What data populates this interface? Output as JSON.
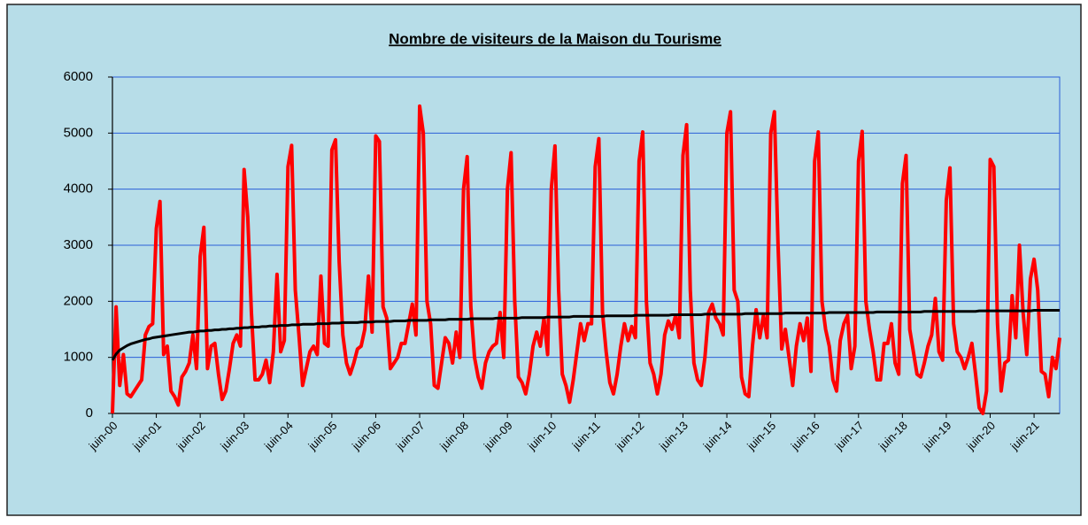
{
  "chart_data": {
    "type": "line",
    "title": "Nombre de visiteurs de la Maison du Tourisme",
    "categories": [
      "juin-00",
      null,
      null,
      null,
      null,
      null,
      null,
      null,
      null,
      null,
      null,
      null,
      "juin-01",
      null,
      null,
      null,
      null,
      null,
      null,
      null,
      null,
      null,
      null,
      null,
      "juin-02",
      null,
      null,
      null,
      null,
      null,
      null,
      null,
      null,
      null,
      null,
      null,
      "juin-03",
      null,
      null,
      null,
      null,
      null,
      null,
      null,
      null,
      null,
      null,
      null,
      "juin-04",
      null,
      null,
      null,
      null,
      null,
      null,
      null,
      null,
      null,
      null,
      null,
      "juin-05",
      null,
      null,
      null,
      null,
      null,
      null,
      null,
      null,
      null,
      null,
      null,
      "juin-06",
      null,
      null,
      null,
      null,
      null,
      null,
      null,
      null,
      null,
      null,
      null,
      "juin-07",
      null,
      null,
      null,
      null,
      null,
      null,
      null,
      null,
      null,
      null,
      null,
      "juin-08",
      null,
      null,
      null,
      null,
      null,
      null,
      null,
      null,
      null,
      null,
      null,
      "juin-09",
      null,
      null,
      null,
      null,
      null,
      null,
      null,
      null,
      null,
      null,
      null,
      "juin-10",
      null,
      null,
      null,
      null,
      null,
      null,
      null,
      null,
      null,
      null,
      null,
      "juin-11",
      null,
      null,
      null,
      null,
      null,
      null,
      null,
      null,
      null,
      null,
      null,
      "juin-12",
      null,
      null,
      null,
      null,
      null,
      null,
      null,
      null,
      null,
      null,
      null,
      "juin-13",
      null,
      null,
      null,
      null,
      null,
      null,
      null,
      null,
      null,
      null,
      null,
      "juin-14",
      null,
      null,
      null,
      null,
      null,
      null,
      null,
      null,
      null,
      null,
      null,
      "juin-15",
      null,
      null,
      null,
      null,
      null,
      null,
      null,
      null,
      null,
      null,
      null,
      "juin-16",
      null,
      null,
      null,
      null,
      null,
      null,
      null,
      null,
      null,
      null,
      null,
      "juin-17",
      null,
      null,
      null,
      null,
      null,
      null,
      null,
      null,
      null,
      null,
      null,
      "juin-18",
      null,
      null,
      null,
      null,
      null,
      null,
      null,
      null,
      null,
      null,
      null,
      "juin-19",
      null,
      null,
      null,
      null,
      null,
      null,
      null,
      null,
      null,
      null,
      null,
      "juin-20",
      null,
      null,
      null,
      null,
      null,
      null,
      null,
      null,
      null,
      null,
      null,
      "juin-21",
      null,
      null,
      null,
      null,
      null,
      null,
      null
    ],
    "series": [
      {
        "color": "#ff0000",
        "values": [
          0,
          1900,
          500,
          1050,
          350,
          300,
          400,
          500,
          600,
          1400,
          1550,
          1600,
          3300,
          3780,
          1050,
          1200,
          400,
          300,
          150,
          650,
          750,
          900,
          1400,
          800,
          2800,
          3320,
          800,
          1200,
          1250,
          700,
          250,
          400,
          800,
          1250,
          1400,
          1200,
          4350,
          3500,
          1800,
          600,
          600,
          700,
          950,
          550,
          1100,
          2480,
          1100,
          1300,
          4400,
          4780,
          2200,
          1400,
          500,
          800,
          1100,
          1200,
          1050,
          2450,
          1250,
          1200,
          4700,
          4880,
          2700,
          1400,
          900,
          700,
          900,
          1150,
          1200,
          1500,
          2450,
          1450,
          4950,
          4850,
          1900,
          1700,
          800,
          900,
          1000,
          1250,
          1250,
          1600,
          1950,
          1400,
          5480,
          5000,
          2000,
          1600,
          500,
          450,
          900,
          1350,
          1250,
          900,
          1450,
          1000,
          4000,
          4580,
          1900,
          1000,
          650,
          450,
          900,
          1100,
          1200,
          1250,
          1800,
          1000,
          4000,
          4650,
          2000,
          650,
          550,
          350,
          700,
          1200,
          1450,
          1200,
          1700,
          1050,
          4000,
          4770,
          2200,
          700,
          500,
          200,
          600,
          1100,
          1600,
          1300,
          1600,
          1600,
          4400,
          4900,
          1800,
          1100,
          550,
          350,
          700,
          1200,
          1600,
          1300,
          1550,
          1350,
          4500,
          5020,
          2000,
          900,
          700,
          350,
          700,
          1400,
          1650,
          1500,
          1750,
          1350,
          4600,
          5150,
          2200,
          900,
          600,
          500,
          1000,
          1800,
          1950,
          1700,
          1600,
          1400,
          5000,
          5380,
          2200,
          2000,
          650,
          350,
          300,
          1200,
          1850,
          1350,
          1750,
          1350,
          5000,
          5380,
          3000,
          1150,
          1500,
          1000,
          500,
          1200,
          1600,
          1300,
          1700,
          750,
          4500,
          5020,
          2000,
          1500,
          1200,
          600,
          400,
          1300,
          1600,
          1750,
          800,
          1200,
          4500,
          5030,
          2000,
          1500,
          1100,
          600,
          600,
          1250,
          1250,
          1600,
          900,
          700,
          4100,
          4600,
          1500,
          1100,
          700,
          650,
          900,
          1200,
          1400,
          2050,
          1100,
          950,
          3800,
          4380,
          1600,
          1100,
          1000,
          800,
          1000,
          1250,
          700,
          100,
          0,
          400,
          4530,
          4400,
          1600,
          400,
          900,
          950,
          2100,
          1350,
          3000,
          1800,
          1050,
          2400,
          2750,
          2200,
          750,
          700,
          300,
          1000,
          800,
          1350
        ]
      },
      {
        "color": "#000000",
        "values": [
          950,
          1060,
          1130,
          1170,
          1210,
          1240,
          1260,
          1280,
          1300,
          1320,
          1330,
          1350,
          1360,
          1370,
          1380,
          1390,
          1400,
          1410,
          1420,
          1430,
          1440,
          1450,
          1450,
          1460,
          1470,
          1470,
          1480,
          1480,
          1490,
          1490,
          1500,
          1500,
          1510,
          1510,
          1520,
          1520,
          1530,
          1530,
          1540,
          1540,
          1540,
          1550,
          1550,
          1560,
          1560,
          1560,
          1570,
          1570,
          1570,
          1580,
          1580,
          1580,
          1590,
          1590,
          1590,
          1590,
          1600,
          1600,
          1600,
          1600,
          1610,
          1610,
          1610,
          1620,
          1620,
          1620,
          1620,
          1620,
          1630,
          1630,
          1630,
          1630,
          1640,
          1640,
          1640,
          1640,
          1640,
          1650,
          1650,
          1650,
          1650,
          1660,
          1660,
          1660,
          1660,
          1660,
          1660,
          1670,
          1670,
          1670,
          1670,
          1670,
          1680,
          1680,
          1680,
          1680,
          1680,
          1680,
          1690,
          1690,
          1690,
          1690,
          1690,
          1690,
          1690,
          1700,
          1700,
          1700,
          1700,
          1700,
          1700,
          1700,
          1710,
          1710,
          1710,
          1710,
          1710,
          1710,
          1710,
          1720,
          1720,
          1720,
          1720,
          1720,
          1720,
          1720,
          1730,
          1730,
          1730,
          1730,
          1730,
          1730,
          1730,
          1730,
          1730,
          1740,
          1740,
          1740,
          1740,
          1740,
          1740,
          1740,
          1740,
          1750,
          1750,
          1750,
          1750,
          1750,
          1750,
          1750,
          1750,
          1750,
          1750,
          1760,
          1760,
          1760,
          1760,
          1760,
          1760,
          1760,
          1760,
          1760,
          1770,
          1770,
          1770,
          1770,
          1770,
          1770,
          1770,
          1770,
          1770,
          1770,
          1770,
          1780,
          1780,
          1780,
          1780,
          1780,
          1780,
          1780,
          1780,
          1780,
          1780,
          1780,
          1790,
          1790,
          1790,
          1790,
          1790,
          1790,
          1790,
          1790,
          1790,
          1790,
          1790,
          1790,
          1800,
          1800,
          1800,
          1800,
          1800,
          1800,
          1800,
          1800,
          1800,
          1800,
          1800,
          1800,
          1800,
          1810,
          1810,
          1810,
          1810,
          1810,
          1810,
          1810,
          1810,
          1810,
          1810,
          1810,
          1810,
          1810,
          1820,
          1820,
          1820,
          1820,
          1820,
          1820,
          1820,
          1820,
          1820,
          1820,
          1820,
          1820,
          1820,
          1820,
          1820,
          1830,
          1830,
          1830,
          1830,
          1830,
          1830,
          1830,
          1830,
          1830,
          1830,
          1830,
          1830,
          1830,
          1830,
          1830,
          1840,
          1840,
          1840,
          1840,
          1840,
          1840,
          1840,
          1840
        ]
      }
    ],
    "ylim": [
      0,
      6000
    ],
    "yticks": [
      0,
      1000,
      2000,
      3000,
      4000,
      5000,
      6000
    ],
    "grid": true
  }
}
